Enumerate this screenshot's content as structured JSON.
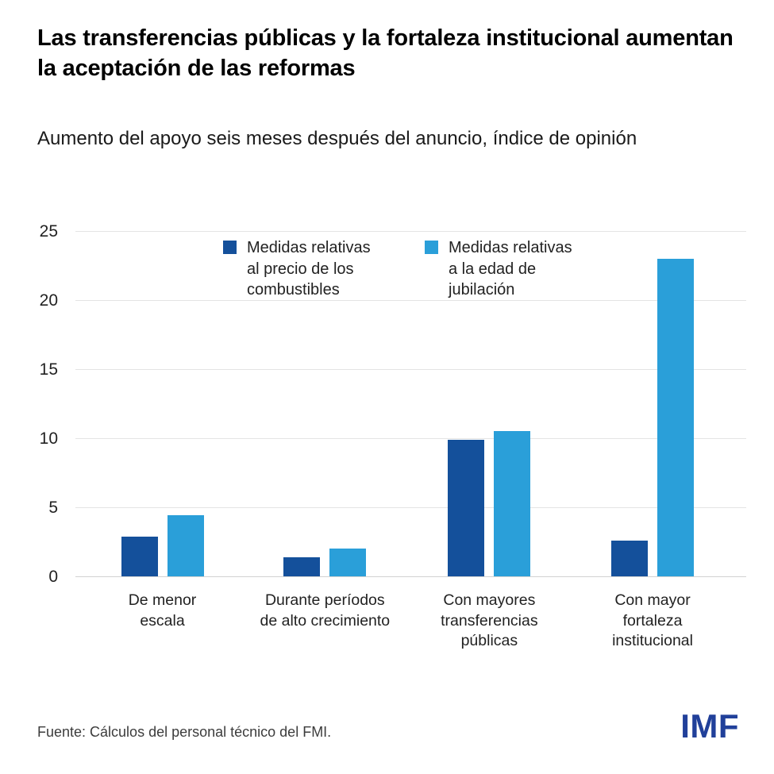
{
  "header": {
    "title": "Las transferencias públicas y la fortaleza institucional aumentan la aceptación de las reformas",
    "subtitle": "Aumento del apoyo seis meses después del anuncio, índice de opinión"
  },
  "chart_data": {
    "type": "bar",
    "title": "Las transferencias públicas y la fortaleza institucional aumentan la aceptación de las reformas",
    "subtitle": "Aumento del apoyo seis meses después del anuncio, índice de opinión",
    "categories": [
      "De menor escala",
      "Durante períodos de alto crecimiento",
      "Con mayores transferencias públicas",
      "Con mayor fortaleza institucional"
    ],
    "category_label_lines": [
      [
        "De menor",
        "escala"
      ],
      [
        "Durante períodos",
        "de alto crecimiento"
      ],
      [
        "Con mayores",
        "transferencias",
        "públicas"
      ],
      [
        "Con mayor",
        "fortaleza",
        "institucional"
      ]
    ],
    "series": [
      {
        "name": "Medidas relativas al precio de los combustibles",
        "label_lines": [
          "Medidas relativas",
          "al precio de los",
          "combustibles"
        ],
        "color": "#14509B",
        "values": [
          2.9,
          1.4,
          9.9,
          2.6
        ]
      },
      {
        "name": "Medidas relativas a la edad de jubilación",
        "label_lines": [
          "Medidas relativas",
          "a la edad de",
          "jubilación"
        ],
        "color": "#2A9FD9",
        "values": [
          4.4,
          2.0,
          10.5,
          23.0
        ]
      }
    ],
    "xlabel": "",
    "ylabel": "",
    "ylim": [
      0,
      25
    ],
    "yticks": [
      0,
      5,
      10,
      15,
      20,
      25
    ],
    "grid": true,
    "legend_position": "top-inside"
  },
  "footer": {
    "source": "Fuente: Cálculos del personal técnico del FMI.",
    "logo": "IMF"
  },
  "colors": {
    "series_dark": "#14509B",
    "series_light": "#2A9FD9",
    "logo_blue": "#21409A",
    "gridline": "#E4E4E4"
  }
}
